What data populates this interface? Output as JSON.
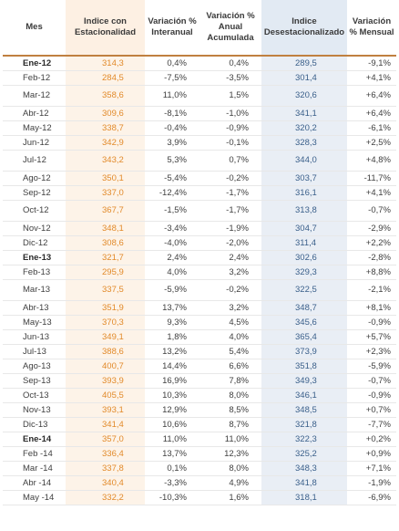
{
  "headers": {
    "mes": "Mes",
    "indice_con": "Indice con Estacionalidad",
    "var_interanual": "Variación % Interanual",
    "var_acumulada": "Variación % Anual Acumulada",
    "indice_desest": "Indice Desestacionalizado",
    "var_mensual": "Variación % Mensual"
  },
  "rows": [
    {
      "mes": "Ene-12",
      "bold": true,
      "indice": "314,3",
      "interanual": "0,4%",
      "acumulada": "0,4%",
      "desest": "289,5",
      "mensual": "-9,1%"
    },
    {
      "mes": "Feb-12",
      "bold": false,
      "indice": "284,5",
      "interanual": "-7,5%",
      "acumulada": "-3,5%",
      "desest": "301,4",
      "mensual": "+4,1%"
    },
    {
      "mes": "Mar-12",
      "bold": false,
      "indice": "358,6",
      "interanual": "11,0%",
      "acumulada": "1,5%",
      "desest": "320,6",
      "mensual": "+6,4%"
    },
    {
      "mes": "Abr-12",
      "bold": false,
      "indice": "309,6",
      "interanual": "-8,1%",
      "acumulada": "-1,0%",
      "desest": "341,1",
      "mensual": "+6,4%"
    },
    {
      "mes": "May-12",
      "bold": false,
      "indice": "338,7",
      "interanual": "-0,4%",
      "acumulada": "-0,9%",
      "desest": "320,2",
      "mensual": "-6,1%"
    },
    {
      "mes": "Jun-12",
      "bold": false,
      "indice": "342,9",
      "interanual": "3,9%",
      "acumulada": "-0,1%",
      "desest": "328,3",
      "mensual": "+2,5%"
    },
    {
      "mes": "Jul-12",
      "bold": false,
      "indice": "343,2",
      "interanual": "5,3%",
      "acumulada": "0,7%",
      "desest": "344,0",
      "mensual": "+4,8%"
    },
    {
      "mes": "Ago-12",
      "bold": false,
      "indice": "350,1",
      "interanual": "-5,4%",
      "acumulada": "-0,2%",
      "desest": "303,7",
      "mensual": "-11,7%"
    },
    {
      "mes": "Sep-12",
      "bold": false,
      "indice": "337,0",
      "interanual": "-12,4%",
      "acumulada": "-1,7%",
      "desest": "316,1",
      "mensual": "+4,1%"
    },
    {
      "mes": "Oct-12",
      "bold": false,
      "indice": "367,7",
      "interanual": "-1,5%",
      "acumulada": "-1,7%",
      "desest": "313,8",
      "mensual": "-0,7%"
    },
    {
      "mes": "Nov-12",
      "bold": false,
      "indice": "348,1",
      "interanual": "-3,4%",
      "acumulada": "-1,9%",
      "desest": "304,7",
      "mensual": "-2,9%"
    },
    {
      "mes": "Dic-12",
      "bold": false,
      "indice": "308,6",
      "interanual": "-4,0%",
      "acumulada": "-2,0%",
      "desest": "311,4",
      "mensual": "+2,2%"
    },
    {
      "mes": "Ene-13",
      "bold": true,
      "indice": "321,7",
      "interanual": "2,4%",
      "acumulada": "2,4%",
      "desest": "302,6",
      "mensual": "-2,8%"
    },
    {
      "mes": "Feb-13",
      "bold": false,
      "indice": "295,9",
      "interanual": "4,0%",
      "acumulada": "3,2%",
      "desest": "329,3",
      "mensual": "+8,8%"
    },
    {
      "mes": "Mar-13",
      "bold": false,
      "indice": "337,5",
      "interanual": "-5,9%",
      "acumulada": "-0,2%",
      "desest": "322,5",
      "mensual": "-2,1%"
    },
    {
      "mes": "Abr-13",
      "bold": false,
      "indice": "351,9",
      "interanual": "13,7%",
      "acumulada": "3,2%",
      "desest": "348,7",
      "mensual": "+8,1%"
    },
    {
      "mes": "May-13",
      "bold": false,
      "indice": "370,3",
      "interanual": "9,3%",
      "acumulada": "4,5%",
      "desest": "345,6",
      "mensual": "-0,9%"
    },
    {
      "mes": "Jun-13",
      "bold": false,
      "indice": "349,1",
      "interanual": "1,8%",
      "acumulada": "4,0%",
      "desest": "365,4",
      "mensual": "+5,7%"
    },
    {
      "mes": "Jul-13",
      "bold": false,
      "indice": "388,6",
      "interanual": "13,2%",
      "acumulada": "5,4%",
      "desest": "373,9",
      "mensual": "+2,3%"
    },
    {
      "mes": "Ago-13",
      "bold": false,
      "indice": "400,7",
      "interanual": "14,4%",
      "acumulada": "6,6%",
      "desest": "351,8",
      "mensual": "-5,9%"
    },
    {
      "mes": "Sep-13",
      "bold": false,
      "indice": "393,9",
      "interanual": "16,9%",
      "acumulada": "7,8%",
      "desest": "349,3",
      "mensual": "-0,7%"
    },
    {
      "mes": "Oct-13",
      "bold": false,
      "indice": "405,5",
      "interanual": "10,3%",
      "acumulada": "8,0%",
      "desest": "346,1",
      "mensual": "-0,9%"
    },
    {
      "mes": "Nov-13",
      "bold": false,
      "indice": "393,1",
      "interanual": "12,9%",
      "acumulada": "8,5%",
      "desest": "348,5",
      "mensual": "+0,7%"
    },
    {
      "mes": "Dic-13",
      "bold": false,
      "indice": "341,4",
      "interanual": "10,6%",
      "acumulada": "8,7%",
      "desest": "321,8",
      "mensual": "-7,7%"
    },
    {
      "mes": "Ene-14",
      "bold": true,
      "indice": "357,0",
      "interanual": "11,0%",
      "acumulada": "11,0%",
      "desest": "322,3",
      "mensual": "+0,2%"
    },
    {
      "mes": "Feb -14",
      "bold": false,
      "indice": "336,4",
      "interanual": "13,7%",
      "acumulada": "12,3%",
      "desest": "325,2",
      "mensual": "+0,9%"
    },
    {
      "mes": "Mar -14",
      "bold": false,
      "indice": "337,8",
      "interanual": "0,1%",
      "acumulada": "8,0%",
      "desest": "348,3",
      "mensual": "+7,1%"
    },
    {
      "mes": "Abr -14",
      "bold": false,
      "indice": "340,4",
      "interanual": "-3,3%",
      "acumulada": "4,9%",
      "desest": "341,8",
      "mensual": "-1,9%"
    },
    {
      "mes": "May -14",
      "bold": false,
      "indice": "332,2",
      "interanual": "-10,3%",
      "acumulada": "1,6%",
      "desest": "318,1",
      "mensual": "-6,9%"
    }
  ]
}
